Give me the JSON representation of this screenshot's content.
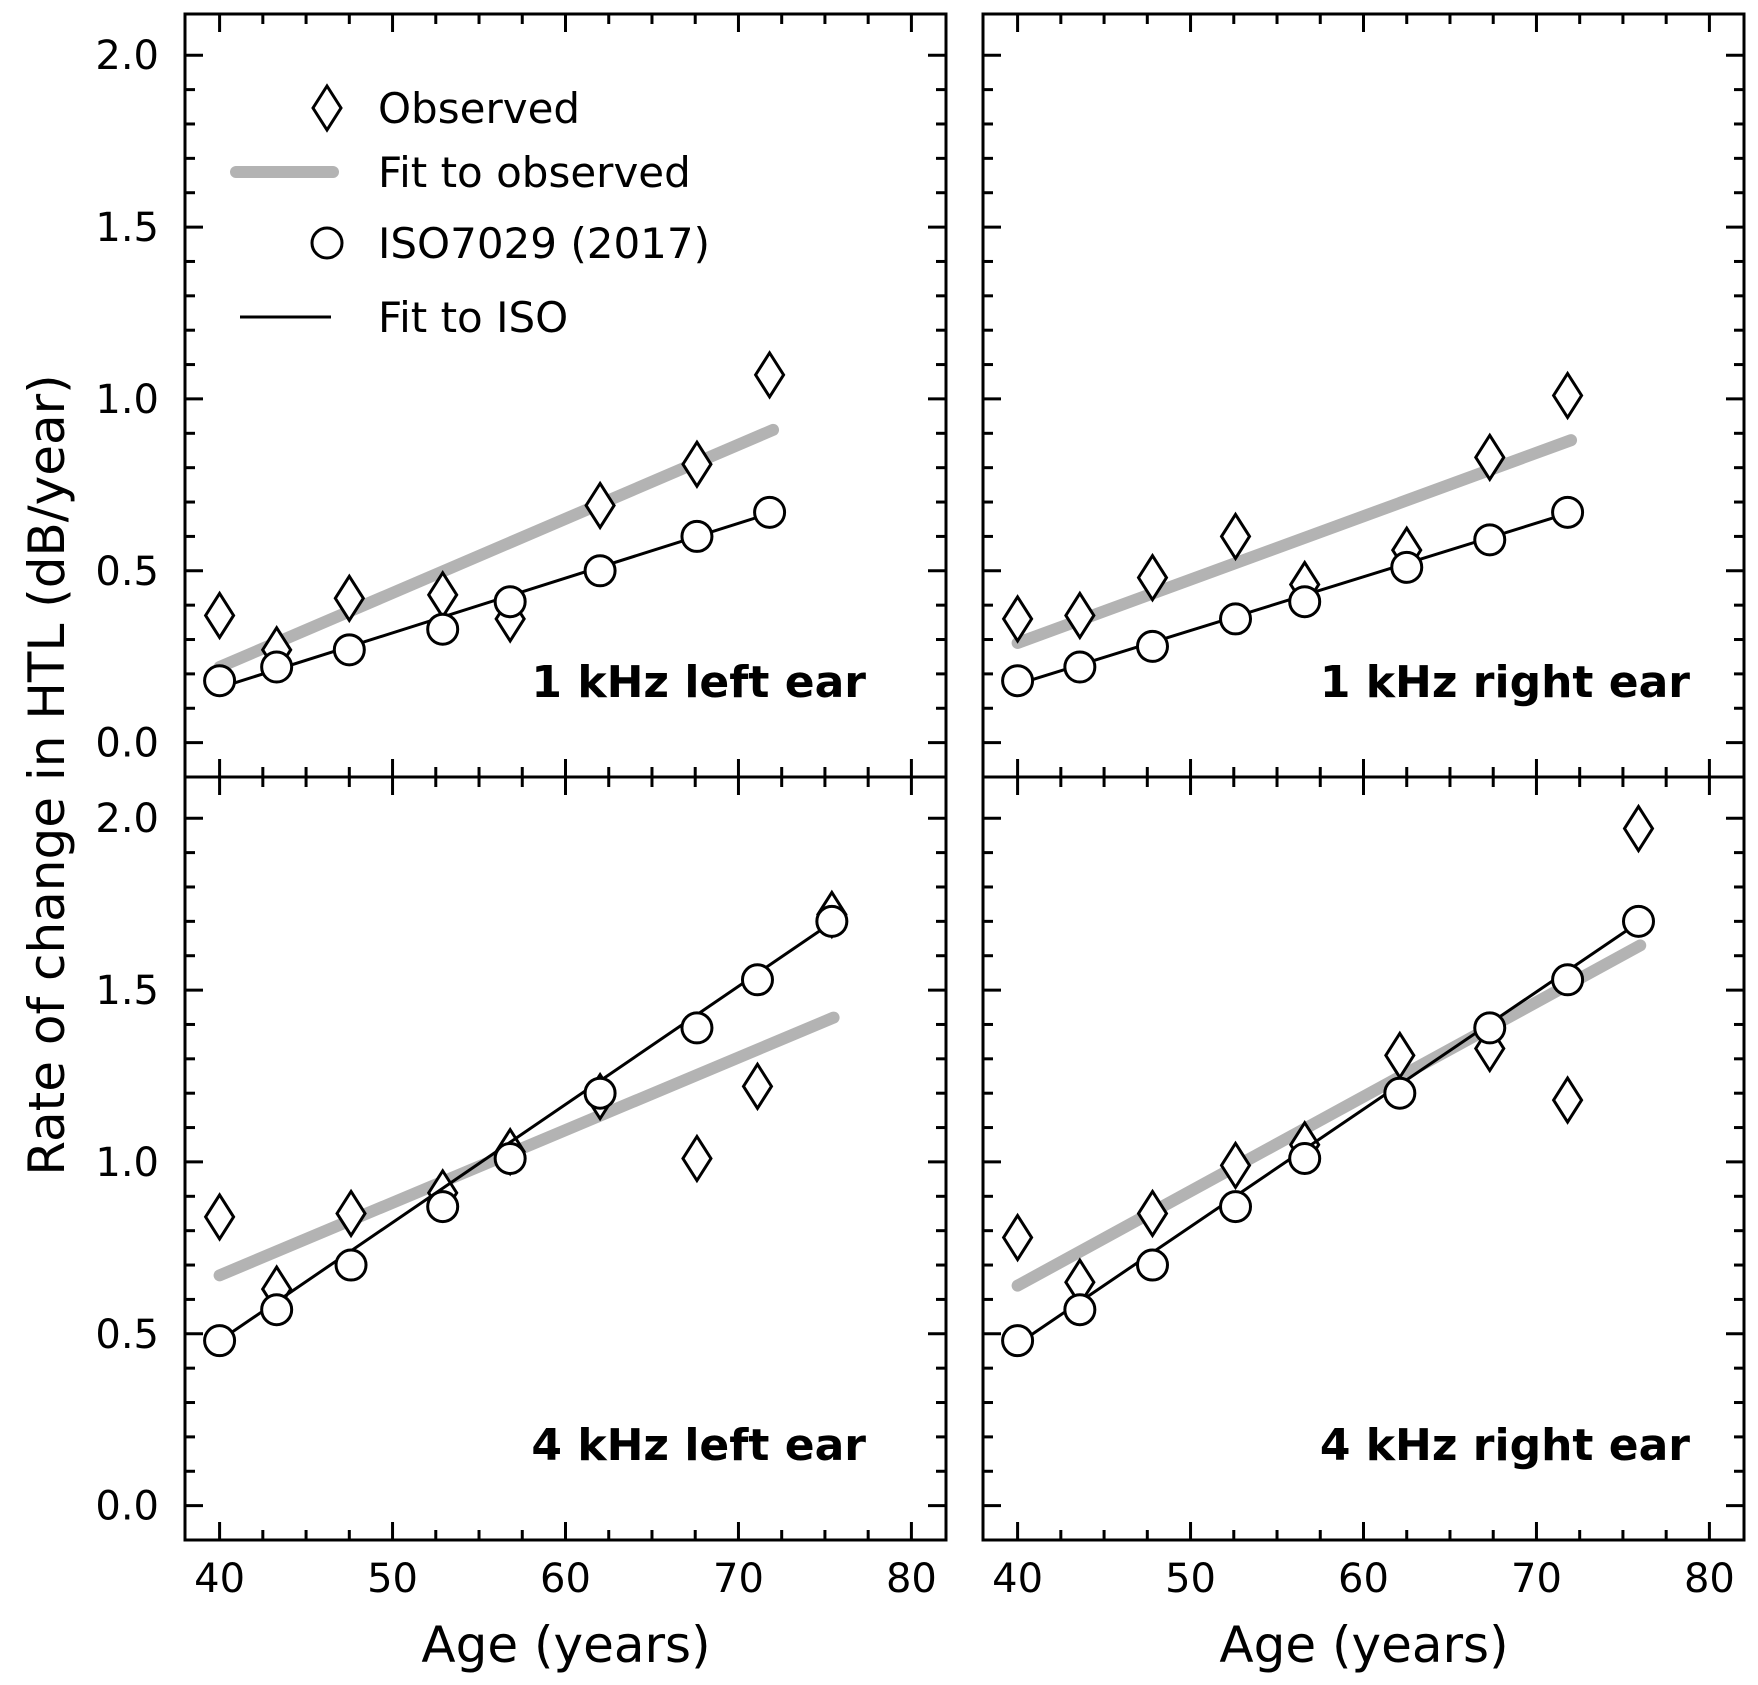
{
  "chart_data": {
    "type": "scatter",
    "ylabel": "Rate of change in HTL (dB/year)",
    "xlabel": "Age (years)",
    "xlim": [
      38,
      82
    ],
    "ylim": [
      -0.1,
      2.12
    ],
    "xticks": [
      "40",
      "50",
      "60",
      "70",
      "80"
    ],
    "yticks": [
      "0.0",
      "0.5",
      "1.0",
      "1.5",
      "2.0"
    ],
    "legend": {
      "placement": "top-left of top-left panel",
      "entries": [
        {
          "label": "Observed",
          "marker": "diamond"
        },
        {
          "label": "Fit to observed",
          "marker": "thick-gray-line"
        },
        {
          "label": "ISO7029 (2017)",
          "marker": "circle"
        },
        {
          "label": "Fit to ISO",
          "marker": "thin-black-line"
        }
      ]
    },
    "colors": {
      "fit_observed": "#b3b3b3",
      "fit_iso": "#000000",
      "markers": "#000000"
    },
    "panels": [
      {
        "label": "1 kHz left ear",
        "observed": {
          "x": [
            40,
            43.3,
            47.5,
            52.9,
            56.8,
            62,
            67.6,
            71.8
          ],
          "y": [
            0.37,
            0.27,
            0.42,
            0.43,
            0.36,
            0.69,
            0.81,
            1.07
          ]
        },
        "fit_observed": {
          "x": [
            40,
            72
          ],
          "y": [
            0.22,
            0.91
          ]
        },
        "iso": {
          "x": [
            40,
            43.3,
            47.5,
            52.9,
            56.8,
            62,
            67.6,
            71.8
          ],
          "y": [
            0.18,
            0.22,
            0.27,
            0.33,
            0.41,
            0.5,
            0.6,
            0.67
          ]
        },
        "fit_iso": {
          "x": [
            40,
            72
          ],
          "y": [
            0.16,
            0.67
          ]
        }
      },
      {
        "label": "1 kHz right ear",
        "observed": {
          "x": [
            40,
            43.6,
            47.8,
            52.6,
            56.6,
            62.5,
            67.3,
            71.8
          ],
          "y": [
            0.36,
            0.37,
            0.48,
            0.6,
            0.46,
            0.56,
            0.83,
            1.01
          ]
        },
        "fit_observed": {
          "x": [
            40,
            72
          ],
          "y": [
            0.29,
            0.88
          ]
        },
        "iso": {
          "x": [
            40,
            43.6,
            47.8,
            52.6,
            56.6,
            62.5,
            67.3,
            71.8
          ],
          "y": [
            0.18,
            0.22,
            0.28,
            0.36,
            0.41,
            0.51,
            0.59,
            0.67
          ]
        },
        "fit_iso": {
          "x": [
            40,
            72
          ],
          "y": [
            0.17,
            0.67
          ]
        }
      },
      {
        "label": "4 kHz left ear",
        "observed": {
          "x": [
            40,
            43.3,
            47.6,
            52.9,
            56.8,
            62,
            67.6,
            71.1,
            75.4
          ],
          "y": [
            0.84,
            0.63,
            0.85,
            0.91,
            1.03,
            1.19,
            1.01,
            1.22,
            1.72
          ]
        },
        "fit_observed": {
          "x": [
            40,
            75.5
          ],
          "y": [
            0.67,
            1.42
          ]
        },
        "iso": {
          "x": [
            40,
            43.3,
            47.6,
            52.9,
            56.8,
            62,
            67.6,
            71.1,
            75.4
          ],
          "y": [
            0.48,
            0.57,
            0.7,
            0.87,
            1.01,
            1.2,
            1.39,
            1.53,
            1.7
          ]
        },
        "fit_iso": {
          "x": [
            40,
            75.5
          ],
          "y": [
            0.48,
            1.7
          ]
        }
      },
      {
        "label": "4 kHz right ear",
        "observed": {
          "x": [
            40,
            43.6,
            47.8,
            52.6,
            56.6,
            62.1,
            67.3,
            71.8,
            75.9
          ],
          "y": [
            0.78,
            0.65,
            0.85,
            0.99,
            1.05,
            1.31,
            1.33,
            1.18,
            1.97
          ]
        },
        "fit_observed": {
          "x": [
            40,
            76
          ],
          "y": [
            0.64,
            1.63
          ]
        },
        "iso": {
          "x": [
            40,
            43.6,
            47.8,
            52.6,
            56.6,
            62.1,
            67.3,
            71.8,
            75.9
          ],
          "y": [
            0.48,
            0.57,
            0.7,
            0.87,
            1.01,
            1.2,
            1.39,
            1.53,
            1.7
          ]
        },
        "fit_iso": {
          "x": [
            40,
            76
          ],
          "y": [
            0.47,
            1.7
          ]
        }
      }
    ]
  }
}
